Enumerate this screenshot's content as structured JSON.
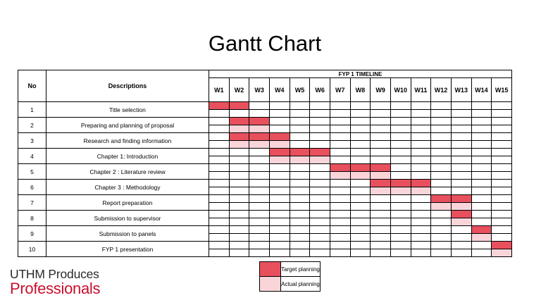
{
  "title": "Gantt Chart",
  "table": {
    "header_no": "No",
    "header_desc": "Descriptions",
    "header_timeline": "FYP 1 TIMELINE",
    "weeks": [
      "W1",
      "W2",
      "W3",
      "W4",
      "W5",
      "W6",
      "W7",
      "W8",
      "W9",
      "W10",
      "W11",
      "W12",
      "W13",
      "W14",
      "W15"
    ],
    "rows": [
      {
        "no": "1",
        "desc": "Title selection",
        "target": [
          1,
          2
        ],
        "actual": [
          1
        ]
      },
      {
        "no": "2",
        "desc": "Preparing and planning of proposal",
        "target": [
          2,
          3
        ],
        "actual": [
          2,
          3
        ]
      },
      {
        "no": "3",
        "desc": "Research and finding information",
        "target": [
          2,
          4
        ],
        "actual": [
          2,
          4
        ]
      },
      {
        "no": "4",
        "desc": "Chapter 1: Introduction",
        "target": [
          4,
          6
        ],
        "actual": [
          4,
          6
        ]
      },
      {
        "no": "5",
        "desc": "Chapter 2 : Literature review",
        "target": [
          7,
          9
        ],
        "actual": [
          7,
          9
        ]
      },
      {
        "no": "6",
        "desc": "Chapter 3 : Methodology",
        "target": [
          9,
          11
        ],
        "actual": [
          9,
          11
        ]
      },
      {
        "no": "7",
        "desc": "Report preparation",
        "target": [
          12,
          13
        ],
        "actual": [
          12,
          13
        ]
      },
      {
        "no": "8",
        "desc": "Submission to supervisor",
        "target": [
          13,
          13
        ],
        "actual": [
          13,
          13
        ]
      },
      {
        "no": "9",
        "desc": "Submission to panels",
        "target": [
          14,
          14
        ],
        "actual": [
          14,
          14
        ]
      },
      {
        "no": "10",
        "desc": "FYP 1 presentation",
        "target": [
          15,
          15
        ],
        "actual": [
          15,
          15
        ]
      }
    ]
  },
  "legend": {
    "target_label": "Target planning",
    "actual_label": "Actual planning",
    "target_color": "#e8505e",
    "actual_color": "#f9d5da"
  },
  "logo": {
    "line1": "UTHM Produces",
    "line2": "Professionals",
    "color_dark": "#2b2b2b",
    "color_brand": "#c8102e"
  }
}
